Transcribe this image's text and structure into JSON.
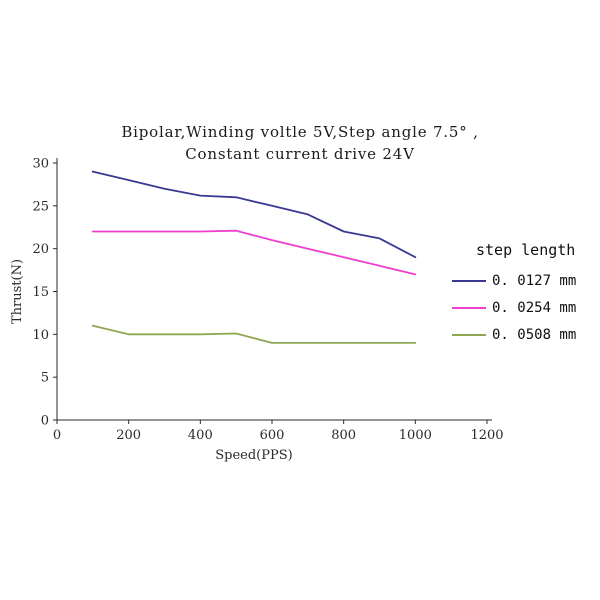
{
  "chart_data": {
    "type": "line",
    "title_line1": "Bipolar,Winding voltle 5V,Step angle 7.5° ,",
    "title_line2": "Constant current drive 24V",
    "xlabel": "Speed(PPS)",
    "ylabel": "Thrust(N)",
    "xlim": [
      0,
      1200
    ],
    "ylim": [
      0,
      30
    ],
    "x_ticks": [
      0,
      200,
      400,
      600,
      800,
      1000,
      1200
    ],
    "y_ticks": [
      0,
      5,
      10,
      15,
      20,
      25,
      30
    ],
    "grid": false,
    "legend_position": "right",
    "legend_title": "step length",
    "series": [
      {
        "name": "0. 0127 mm",
        "color": "#3a3a94",
        "x": [
          100,
          200,
          300,
          400,
          500,
          600,
          700,
          800,
          900,
          1000
        ],
        "y": [
          29,
          28,
          27,
          26.2,
          26,
          25,
          24,
          22,
          21.2,
          19
        ]
      },
      {
        "name": "0. 0254 mm",
        "color": "#ee3fd0",
        "x": [
          100,
          200,
          300,
          400,
          500,
          600,
          700,
          800,
          900,
          1000
        ],
        "y": [
          22,
          22,
          22,
          22,
          22.1,
          21,
          20,
          19,
          18,
          17
        ]
      },
      {
        "name": "0. 0508 mm",
        "color": "#8ea651",
        "x": [
          100,
          200,
          300,
          400,
          500,
          600,
          700,
          800,
          900,
          1000
        ],
        "y": [
          11,
          10,
          10,
          10,
          10.1,
          9,
          9,
          9,
          9,
          9
        ]
      }
    ]
  }
}
